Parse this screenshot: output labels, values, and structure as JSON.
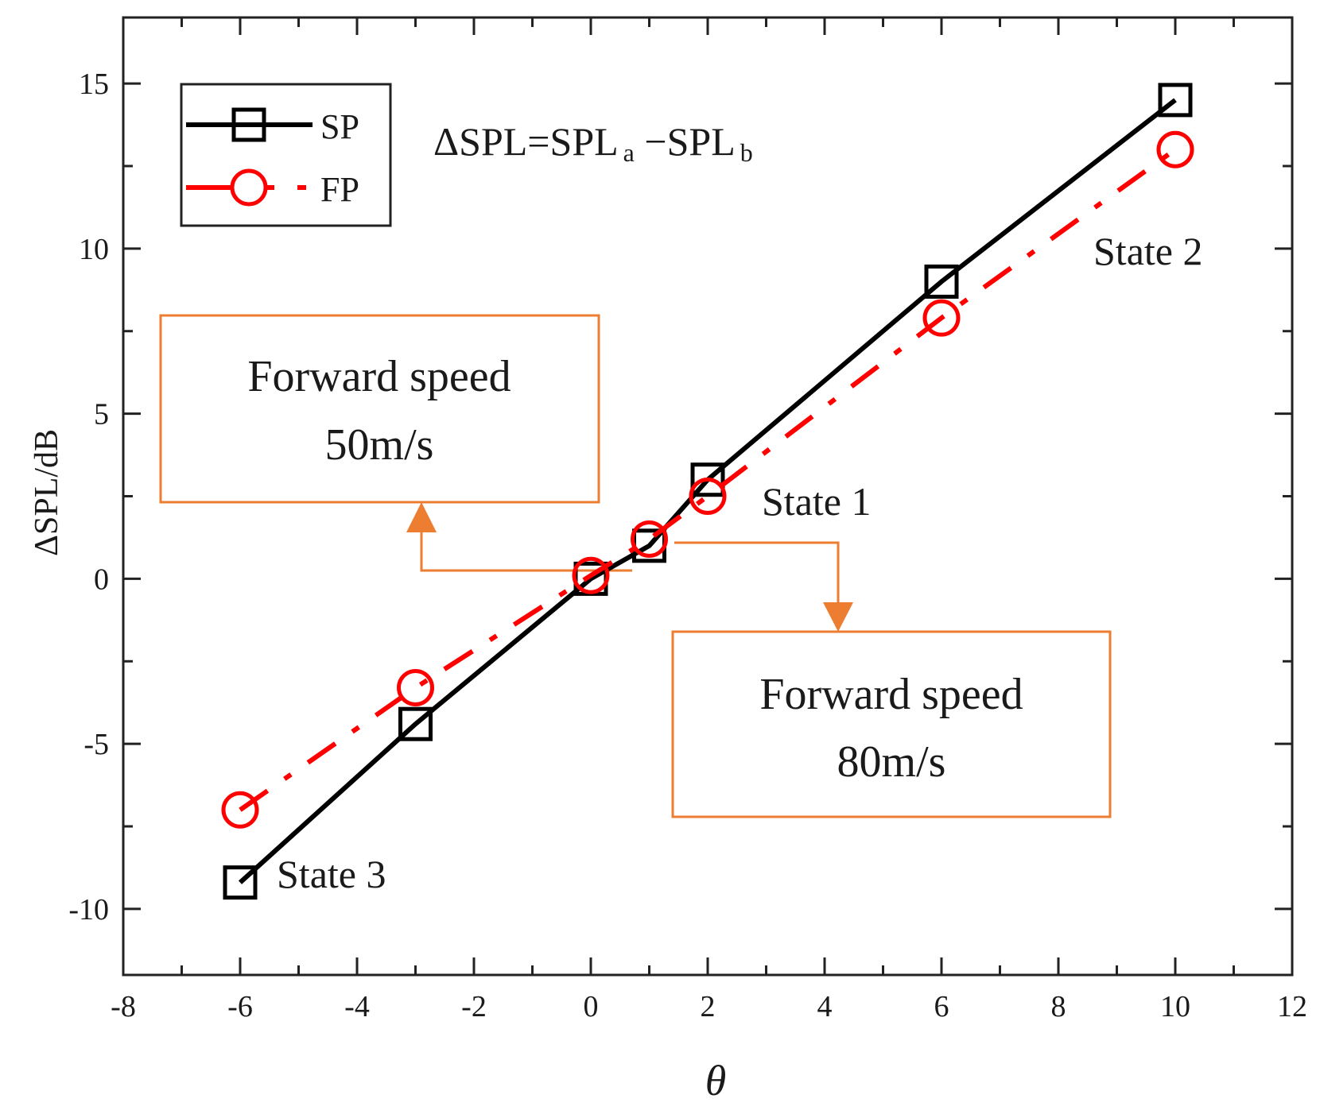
{
  "chart_data": {
    "type": "line",
    "xlabel": "θ",
    "ylabel": "ΔSPL/dB",
    "xlim": [
      -8,
      12
    ],
    "ylim": [
      -12,
      17
    ],
    "xticks": [
      -8,
      -6,
      -4,
      -2,
      0,
      2,
      4,
      6,
      8,
      10,
      12
    ],
    "yticks": [
      -10,
      -5,
      0,
      5,
      10,
      15
    ],
    "xtick_labels": [
      "-8",
      "-6",
      "-4",
      "-2",
      "0",
      "2",
      "4",
      "6",
      "8",
      "10",
      "12"
    ],
    "ytick_labels": [
      "-10",
      "-5",
      "0",
      "5",
      "10",
      "15"
    ],
    "series": [
      {
        "name": "SP",
        "color": "#000000",
        "marker": "square",
        "linestyle": "solid",
        "x": [
          -6,
          -3,
          0,
          1,
          2,
          6,
          10
        ],
        "y": [
          -9.2,
          -4.4,
          0.0,
          1.0,
          3.0,
          9.0,
          14.5
        ]
      },
      {
        "name": "FP",
        "color": "#ff0000",
        "marker": "circle",
        "linestyle": "dashdot",
        "x": [
          -6,
          -3,
          0,
          1,
          2,
          6,
          10
        ],
        "y": [
          -7.0,
          -3.3,
          0.1,
          1.2,
          2.5,
          7.9,
          13.0
        ]
      }
    ],
    "formula": {
      "main": "ΔSPL=SPL",
      "sub_a": "a",
      "minus": " −SPL",
      "sub_b": "b"
    },
    "annotations": {
      "state1": "State 1",
      "state2": "State 2",
      "state3": "State 3",
      "box50": {
        "line1": "Forward speed",
        "line2": "50m/s",
        "color": "#ed7d31"
      },
      "box80": {
        "line1": "Forward speed",
        "line2": "80m/s",
        "color": "#ed7d31"
      }
    }
  }
}
